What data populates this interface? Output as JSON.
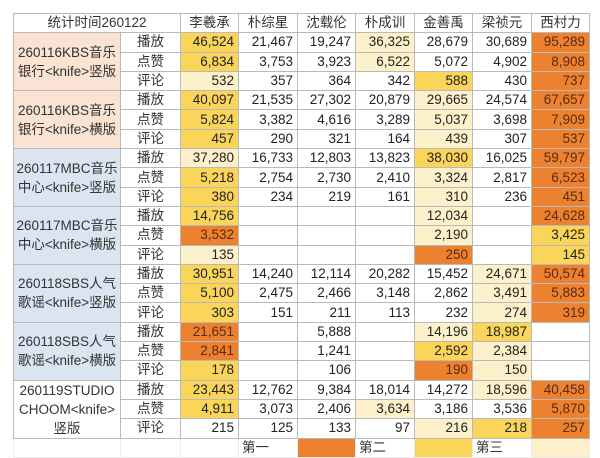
{
  "header": {
    "stat_time": "统计时间260122",
    "members": [
      "李羲承",
      "朴综星",
      "沈载伦",
      "朴成训",
      "金善禹",
      "梁祯元",
      "西村力"
    ]
  },
  "metrics": [
    "播放",
    "点赞",
    "评论"
  ],
  "colors": {
    "first": "#ec8230",
    "second": "#fad55a",
    "third": "#fdf1cc",
    "group_peach": "#fae3d3",
    "group_blue": "#dbe4f1"
  },
  "groups": [
    {
      "label": "260116KBS音乐银行<knife>竖版",
      "bg": "peach",
      "rows": [
        {
          "metric": "播放",
          "values": [
            "46,524",
            "21,467",
            "19,247",
            "36,325",
            "28,679",
            "30,689",
            "95,289"
          ],
          "ranks": [
            2,
            0,
            0,
            3,
            0,
            0,
            1
          ]
        },
        {
          "metric": "点赞",
          "values": [
            "6,834",
            "3,753",
            "3,923",
            "6,522",
            "5,072",
            "4,902",
            "8,908"
          ],
          "ranks": [
            2,
            0,
            0,
            3,
            0,
            0,
            1
          ]
        },
        {
          "metric": "评论",
          "values": [
            "532",
            "357",
            "364",
            "342",
            "588",
            "430",
            "737"
          ],
          "ranks": [
            3,
            0,
            0,
            0,
            2,
            0,
            1
          ]
        }
      ]
    },
    {
      "label": "260116KBS音乐银行<knife>横版",
      "bg": "peach",
      "rows": [
        {
          "metric": "播放",
          "values": [
            "40,097",
            "21,535",
            "27,302",
            "20,879",
            "29,665",
            "24,574",
            "67,657"
          ],
          "ranks": [
            2,
            0,
            0,
            0,
            3,
            0,
            1
          ]
        },
        {
          "metric": "点赞",
          "values": [
            "5,824",
            "3,382",
            "4,616",
            "3,289",
            "5,037",
            "3,698",
            "7,909"
          ],
          "ranks": [
            2,
            0,
            0,
            0,
            3,
            0,
            1
          ]
        },
        {
          "metric": "评论",
          "values": [
            "457",
            "290",
            "321",
            "164",
            "439",
            "307",
            "537"
          ],
          "ranks": [
            2,
            0,
            0,
            0,
            3,
            0,
            1
          ]
        }
      ]
    },
    {
      "label": "260117MBC音乐中心<knife>竖版",
      "bg": "blue",
      "rows": [
        {
          "metric": "播放",
          "values": [
            "37,280",
            "16,733",
            "12,803",
            "13,823",
            "38,030",
            "16,025",
            "59,797"
          ],
          "ranks": [
            3,
            0,
            0,
            0,
            2,
            0,
            1
          ]
        },
        {
          "metric": "点赞",
          "values": [
            "5,218",
            "2,754",
            "2,730",
            "2,410",
            "3,324",
            "2,817",
            "6,523"
          ],
          "ranks": [
            2,
            0,
            0,
            0,
            3,
            0,
            1
          ]
        },
        {
          "metric": "评论",
          "values": [
            "380",
            "234",
            "219",
            "161",
            "310",
            "236",
            "451"
          ],
          "ranks": [
            2,
            0,
            0,
            0,
            3,
            0,
            1
          ]
        }
      ]
    },
    {
      "label": "260117MBC音乐中心<knife>横版",
      "bg": "blue",
      "rows": [
        {
          "metric": "播放",
          "values": [
            "14,756",
            "",
            "",
            "",
            "12,034",
            "",
            "24,628"
          ],
          "ranks": [
            2,
            0,
            0,
            0,
            3,
            0,
            1
          ]
        },
        {
          "metric": "点赞",
          "values": [
            "3,532",
            "",
            "",
            "",
            "2,190",
            "",
            "3,425"
          ],
          "ranks": [
            1,
            0,
            0,
            0,
            3,
            0,
            2
          ]
        },
        {
          "metric": "评论",
          "values": [
            "135",
            "",
            "",
            "",
            "250",
            "",
            "145"
          ],
          "ranks": [
            3,
            0,
            0,
            0,
            1,
            0,
            2
          ]
        }
      ]
    },
    {
      "label": "260118SBS人气歌谣<knife>竖版",
      "bg": "blue",
      "rows": [
        {
          "metric": "播放",
          "values": [
            "30,951",
            "14,240",
            "12,114",
            "20,282",
            "15,452",
            "24,671",
            "50,574"
          ],
          "ranks": [
            2,
            0,
            0,
            0,
            0,
            3,
            1
          ]
        },
        {
          "metric": "点赞",
          "values": [
            "5,100",
            "2,475",
            "2,466",
            "3,148",
            "2,862",
            "3,491",
            "5,883"
          ],
          "ranks": [
            2,
            0,
            0,
            0,
            0,
            3,
            1
          ]
        },
        {
          "metric": "评论",
          "values": [
            "303",
            "151",
            "211",
            "113",
            "232",
            "274",
            "319"
          ],
          "ranks": [
            2,
            0,
            0,
            0,
            0,
            3,
            1
          ]
        }
      ]
    },
    {
      "label": "260118SBS人气歌谣<knife>横版",
      "bg": "blue",
      "rows": [
        {
          "metric": "播放",
          "values": [
            "21,651",
            "",
            "5,888",
            "",
            "14,196",
            "18,987",
            ""
          ],
          "ranks": [
            1,
            0,
            0,
            0,
            3,
            2,
            0
          ]
        },
        {
          "metric": "点赞",
          "values": [
            "2,841",
            "",
            "1,241",
            "",
            "2,592",
            "2,384",
            ""
          ],
          "ranks": [
            1,
            0,
            0,
            0,
            2,
            3,
            0
          ]
        },
        {
          "metric": "评论",
          "values": [
            "178",
            "",
            "106",
            "",
            "190",
            "150",
            ""
          ],
          "ranks": [
            2,
            0,
            0,
            0,
            1,
            3,
            0
          ]
        }
      ]
    },
    {
      "label": "260119STUDIO CHOOM<knife>竖版",
      "bg": "white",
      "rows": [
        {
          "metric": "播放",
          "values": [
            "23,443",
            "12,762",
            "9,384",
            "18,014",
            "14,272",
            "18,596",
            "40,458"
          ],
          "ranks": [
            2,
            0,
            0,
            0,
            0,
            3,
            1
          ]
        },
        {
          "metric": "点赞",
          "values": [
            "4,911",
            "3,073",
            "2,406",
            "3,634",
            "3,186",
            "3,536",
            "5,870"
          ],
          "ranks": [
            2,
            0,
            0,
            3,
            0,
            0,
            1
          ]
        },
        {
          "metric": "评论",
          "values": [
            "215",
            "125",
            "133",
            "97",
            "216",
            "218",
            "257"
          ],
          "ranks": [
            0,
            0,
            0,
            0,
            3,
            2,
            1
          ]
        }
      ]
    }
  ],
  "legend": {
    "first": "第一",
    "second": "第二",
    "third": "第三"
  }
}
